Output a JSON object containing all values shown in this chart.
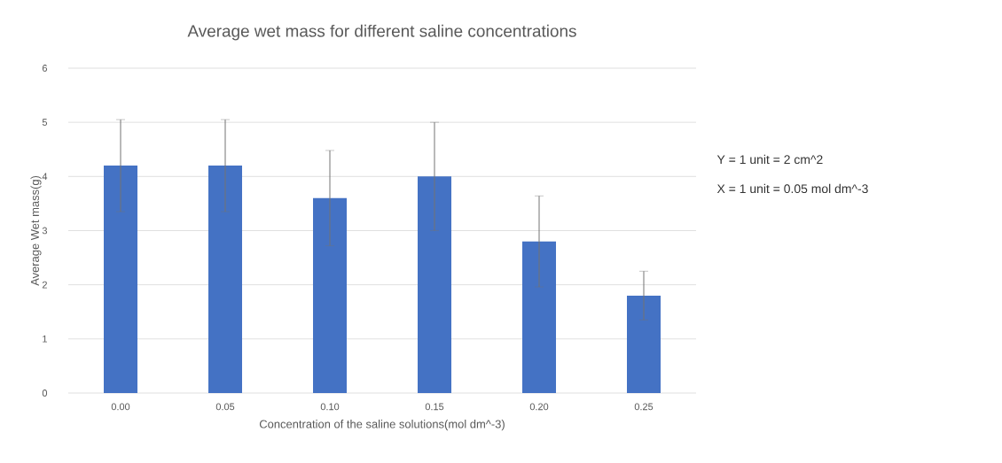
{
  "chart_data": {
    "type": "bar",
    "title": "Average wet mass for different saline concentrations",
    "xlabel": "Concentration of the saline solutions(mol dm^-3)",
    "ylabel": "Average Wet mass(g)",
    "categories": [
      "0.00",
      "0.05",
      "0.10",
      "0.15",
      "0.20",
      "0.25"
    ],
    "values": [
      4.2,
      4.2,
      3.6,
      4.0,
      2.8,
      1.8
    ],
    "errors": [
      0.85,
      0.85,
      0.88,
      1.0,
      0.84,
      0.45
    ],
    "color": "#4472c4",
    "ylim": [
      0,
      6
    ],
    "yticks": [
      0,
      1,
      2,
      3,
      4,
      5,
      6
    ],
    "grid": "y",
    "annotations": [
      "Y = 1 unit = 2 cm^2",
      "X = 1 unit = 0.05 mol dm^-3"
    ]
  }
}
